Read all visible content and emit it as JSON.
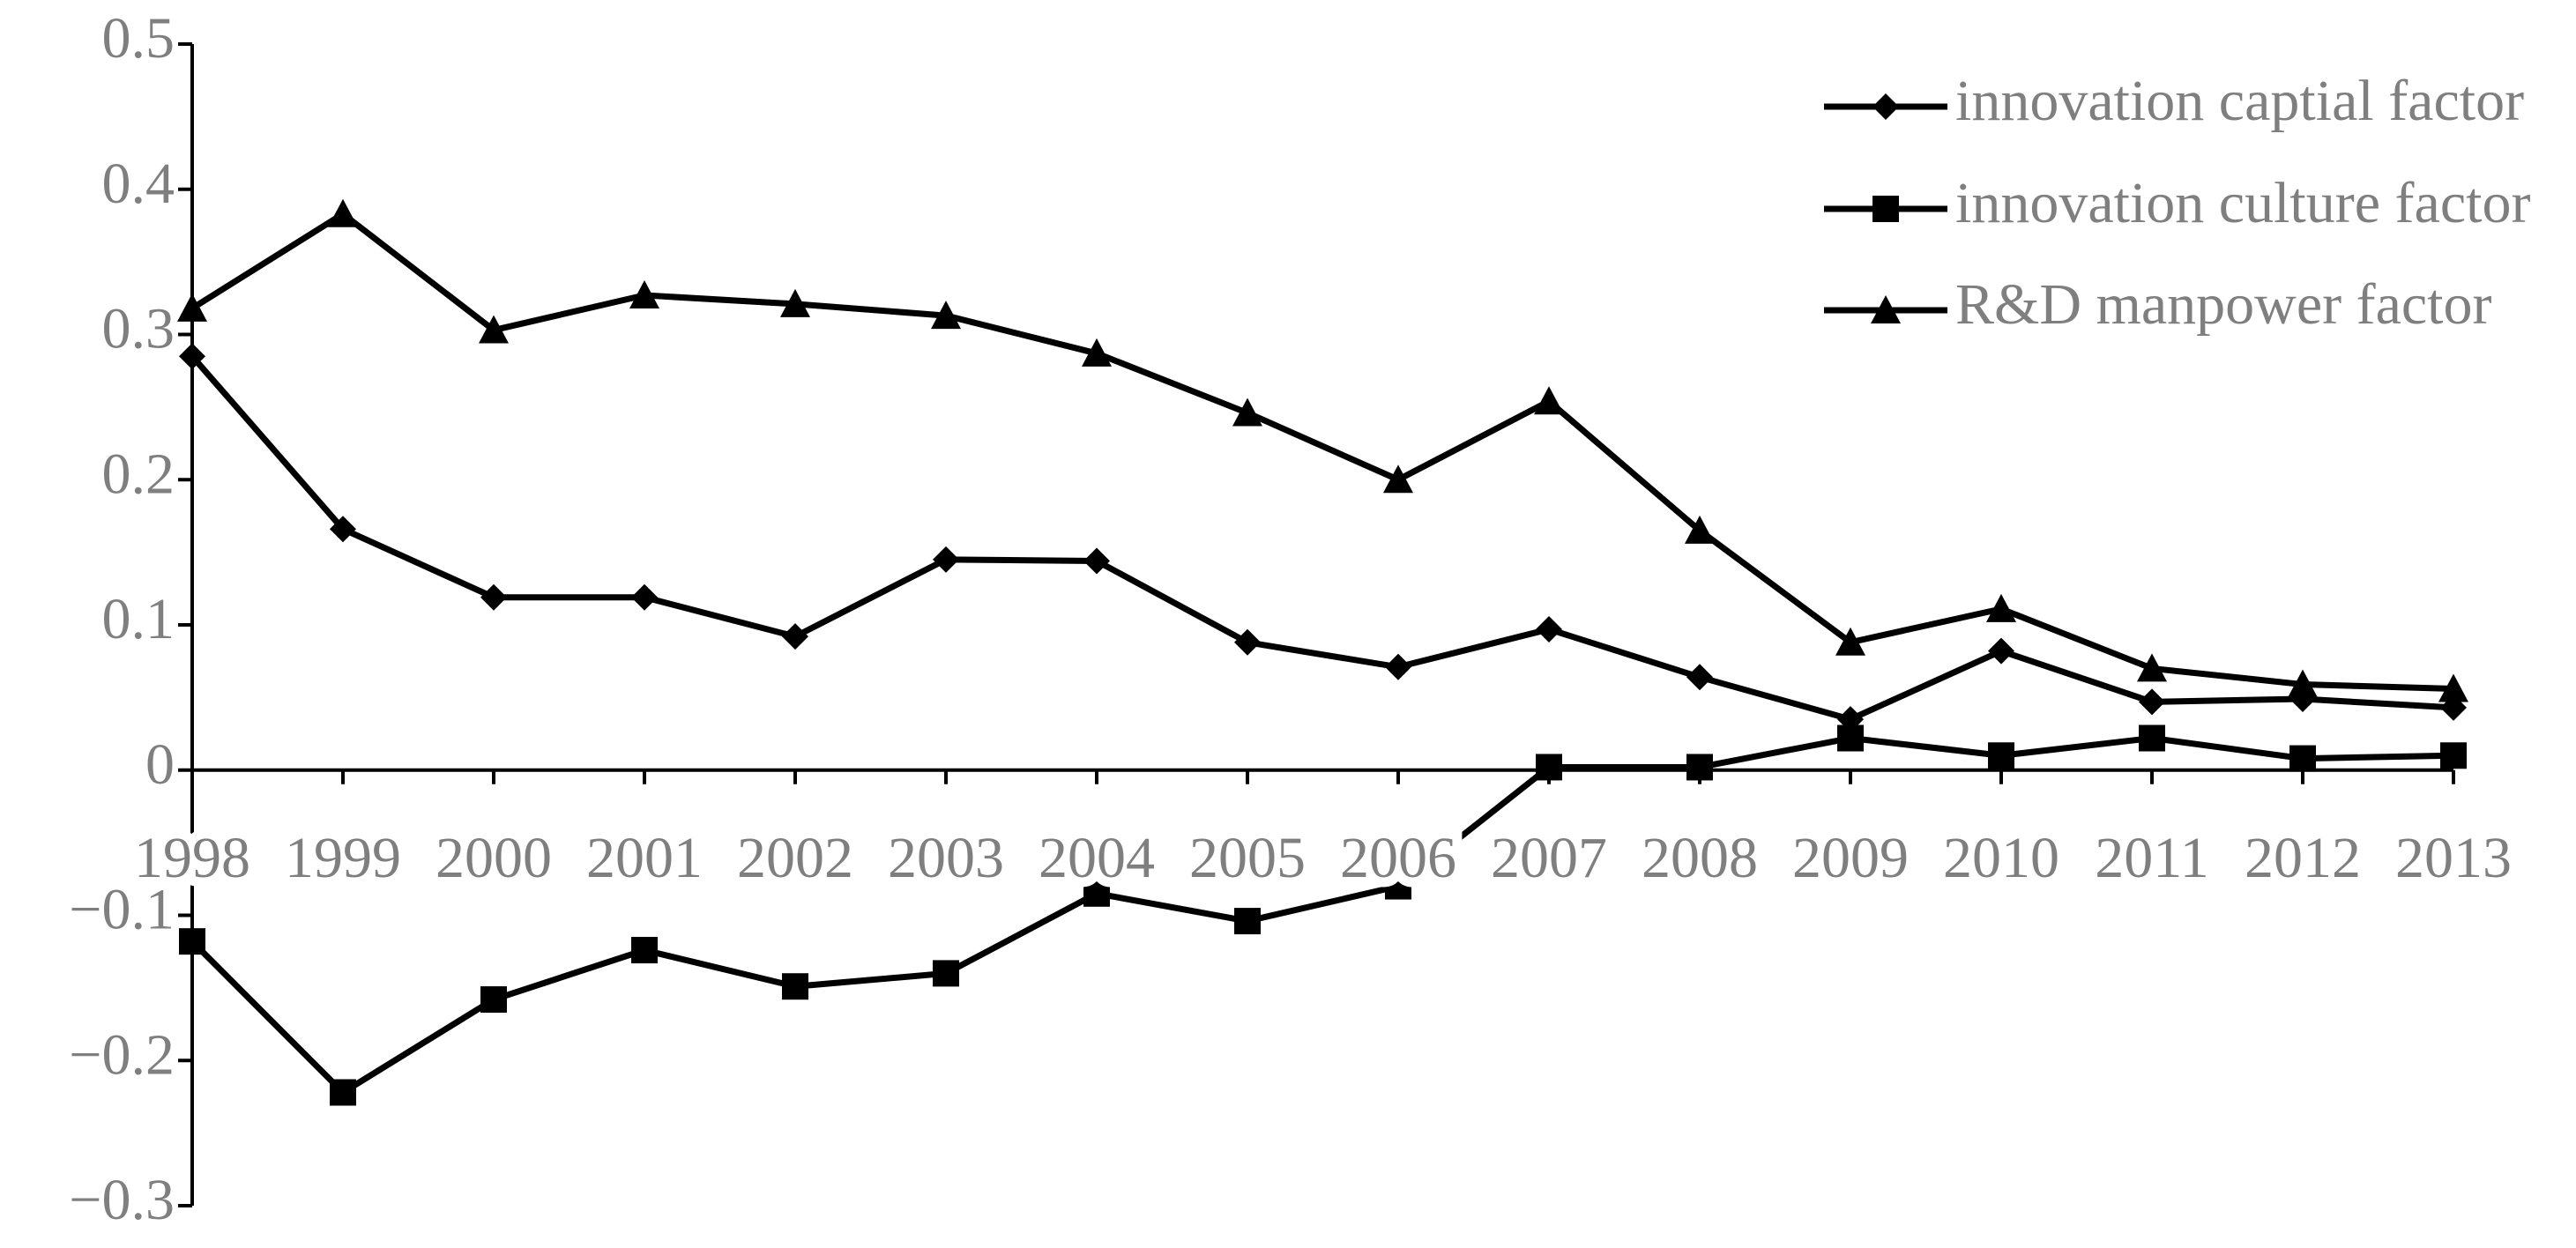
{
  "chart_data": {
    "type": "line",
    "categories": [
      "1998",
      "1999",
      "2000",
      "2001",
      "2002",
      "2003",
      "2004",
      "2005",
      "2006",
      "2007",
      "2008",
      "2009",
      "2010",
      "2011",
      "2012",
      "2013"
    ],
    "series": [
      {
        "name": "innovation captial factor",
        "color": "#000000",
        "marker": "diamond",
        "values": [
          0.285,
          0.166,
          0.119,
          0.119,
          0.092,
          0.145,
          0.144,
          0.088,
          0.071,
          0.097,
          0.064,
          0.035,
          0.082,
          0.047,
          0.049,
          0.043
        ]
      },
      {
        "name": "innovation culture factor",
        "color": "#000000",
        "marker": "square",
        "values": [
          -0.118,
          -0.222,
          -0.158,
          -0.124,
          -0.149,
          -0.14,
          -0.085,
          -0.104,
          -0.08,
          0.002,
          0.002,
          0.022,
          0.01,
          0.022,
          0.008,
          0.01
        ]
      },
      {
        "name": "R&D manpower factor",
        "color": "#000000",
        "marker": "triangle",
        "values": [
          0.318,
          0.383,
          0.303,
          0.327,
          0.321,
          0.313,
          0.287,
          0.246,
          0.2,
          0.254,
          0.165,
          0.088,
          0.111,
          0.07,
          0.059,
          0.056
        ]
      }
    ],
    "ylim": [
      -0.3,
      0.5
    ],
    "yticks": [
      0.5,
      0.4,
      0.3,
      0.2,
      0.1,
      0,
      {
        "value": -0.1,
        "label": "−0.1"
      },
      {
        "value": -0.2,
        "label": "−0.2"
      },
      {
        "value": -0.3,
        "label": "−0.3"
      }
    ],
    "legend": "top-right"
  }
}
